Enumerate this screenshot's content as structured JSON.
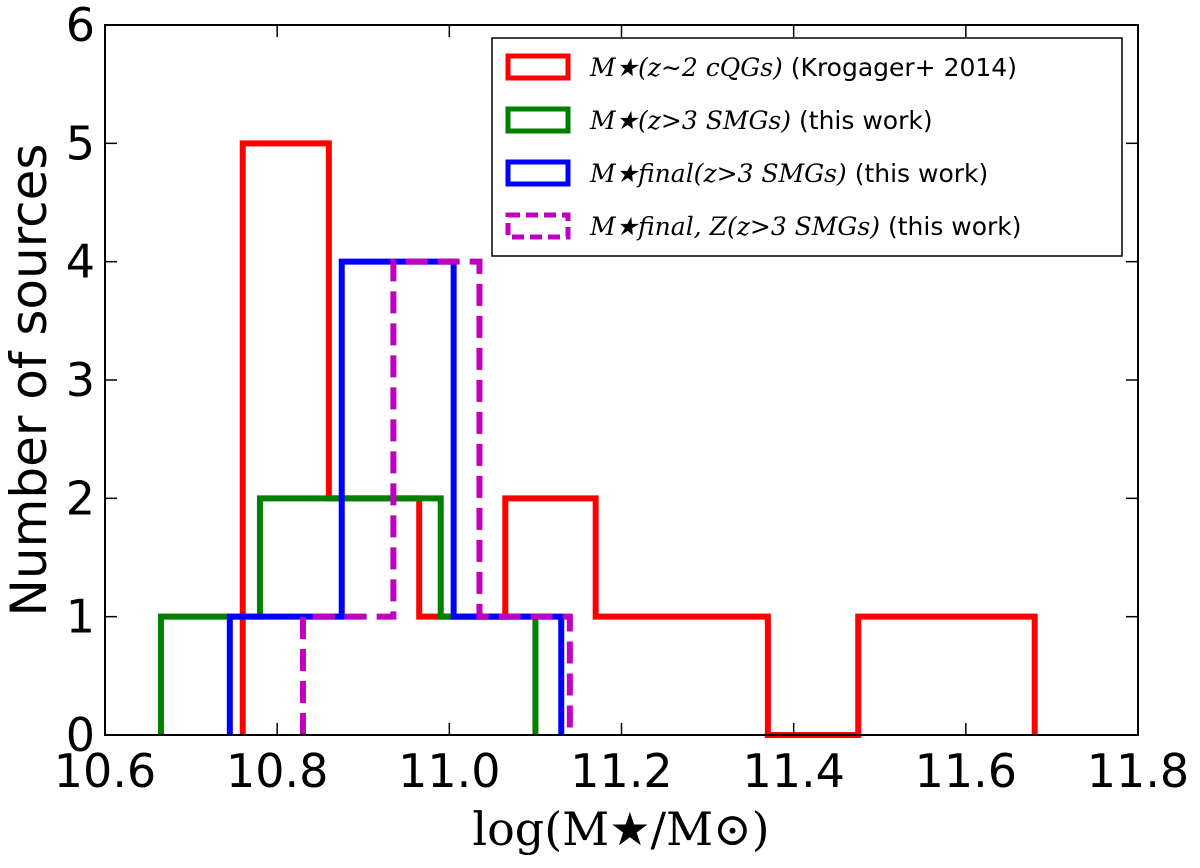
{
  "chart_data": {
    "type": "histogram",
    "title": "",
    "xlabel": "log(M★/M⊙)",
    "ylabel": "Number of sources",
    "xlim": [
      10.6,
      11.8
    ],
    "ylim": [
      0,
      6
    ],
    "x_ticks": [
      "10.6",
      "10.8",
      "11.0",
      "11.2",
      "11.4",
      "11.6",
      "11.8"
    ],
    "y_ticks": [
      "0",
      "1",
      "2",
      "3",
      "4",
      "5",
      "6"
    ],
    "grid": false,
    "legend_position": "top-right",
    "series": [
      {
        "name": "M★(z∼2 cQGs) (Krogager+ 2014)",
        "legend_math": "M★(z∼2 cQGs)",
        "legend_text": "(Krogager+ 2014)",
        "color": "#ff0000",
        "dash": "solid",
        "bin_edges": [
          10.76,
          10.86,
          10.965,
          11.065,
          11.17,
          11.37,
          11.475,
          11.68
        ],
        "counts": [
          5,
          2,
          1,
          2,
          1,
          0,
          1
        ]
      },
      {
        "name": "M★(z>3 SMGs) (this work)",
        "legend_math": "M★(z>3 SMGs)",
        "legend_text": "(this work)",
        "color": "#008000",
        "dash": "solid",
        "bin_edges": [
          10.665,
          10.78,
          10.99,
          11.1
        ],
        "counts": [
          1,
          2,
          1
        ]
      },
      {
        "name": "M★final(z>3 SMGs) (this work)",
        "legend_math": "M★final(z>3 SMGs)",
        "legend_text": "(this work)",
        "color": "#0000ff",
        "dash": "solid",
        "bin_edges": [
          10.745,
          10.875,
          11.005,
          11.13
        ],
        "counts": [
          1,
          4,
          1
        ]
      },
      {
        "name": "M★final, Z(z>3 SMGs) (this work)",
        "legend_math": "M★final, Z(z>3 SMGs)",
        "legend_text": "(this work)",
        "color": "#bf00bf",
        "dash": "dashed",
        "bin_edges": [
          10.83,
          10.935,
          11.035,
          11.14
        ],
        "counts": [
          1,
          4,
          1
        ]
      }
    ]
  }
}
